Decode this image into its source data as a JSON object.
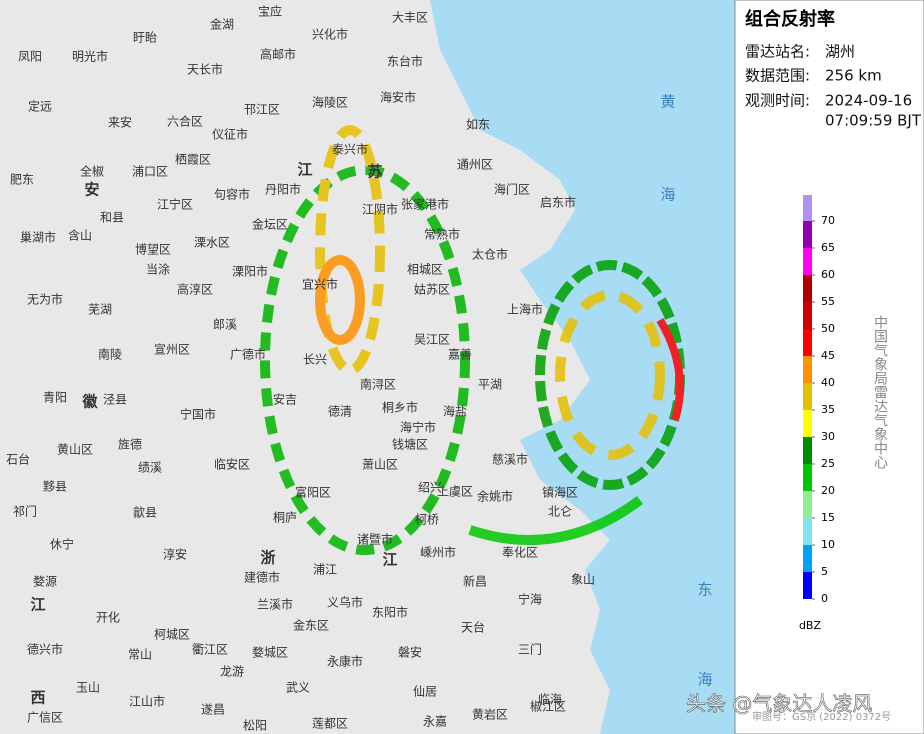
{
  "panel": {
    "title": "组合反射率",
    "station_label": "雷达站名:",
    "station": "湖州",
    "range_label": "数据范围:",
    "range": "256 km",
    "time_label": "观测时间:",
    "date": "2024-09-16",
    "time": "07:09:59 BJT"
  },
  "legend": {
    "ticks": [
      0,
      5,
      10,
      15,
      20,
      25,
      30,
      35,
      40,
      45,
      50,
      55,
      60,
      65,
      70
    ],
    "colors": [
      "#0000f6",
      "#00a0f6",
      "#80e4f0",
      "#90ee90",
      "#00c800",
      "#008c00",
      "#ffff00",
      "#e6c000",
      "#ff9000",
      "#ff0000",
      "#d00000",
      "#b00000",
      "#ff00f0",
      "#9000b0",
      "#b090f0"
    ],
    "unit": "dBZ",
    "agency": "中国气象局雷达气象中心"
  },
  "map": {
    "place_names": [
      "大丰区",
      "宝应",
      "金湖",
      "兴化市",
      "盱眙",
      "凤阳",
      "明光市",
      "高邮市",
      "东台市",
      "天长市",
      "定远",
      "邗江区",
      "海陵区",
      "海安市",
      "如东",
      "来安",
      "六合区",
      "仪征市",
      "泰兴市",
      "通州区",
      "肥东",
      "全椒",
      "浦口区",
      "栖霞区",
      "丹阳市",
      "张家港市",
      "海门区",
      "启东市",
      "巢湖市",
      "含山",
      "和县",
      "江宁区",
      "句容市",
      "金坛区",
      "江阴市",
      "常熟市",
      "太仓市",
      "当涂",
      "溧水区",
      "博望区",
      "溧阳市",
      "宜兴市",
      "相城区",
      "无为市",
      "高淳区",
      "姑苏区",
      "上海市",
      "芜湖",
      "郎溪",
      "广德市",
      "吴江区",
      "嘉善",
      "南陵",
      "宣州区",
      "长兴",
      "南浔区",
      "平湖",
      "青阳",
      "泾县",
      "宁国市",
      "安吉",
      "德清",
      "桐乡市",
      "海盐",
      "海宁市",
      "钱塘区",
      "黄山区",
      "旌德",
      "绩溪",
      "临安区",
      "萧山区",
      "慈溪市",
      "镇海区",
      "石台",
      "黟县",
      "歙县",
      "富阳区",
      "绍兴",
      "上虞区",
      "余姚市",
      "祁门",
      "桐庐",
      "诸暨市",
      "柯桥",
      "嵊州市",
      "奉化区",
      "北仑",
      "休宁",
      "淳安",
      "建德市",
      "浦江",
      "新昌",
      "象山",
      "婺源",
      "兰溪市",
      "义乌市",
      "东阳市",
      "宁海",
      "开化",
      "柯城区",
      "金东区",
      "天台",
      "常山",
      "衢江区",
      "龙游",
      "婺城区",
      "永康市",
      "磐安",
      "三门",
      "德兴市",
      "武义",
      "仙居",
      "临海",
      "玉山",
      "江山市",
      "遂昌",
      "松阳",
      "莲都区",
      "永嘉",
      "黄岩区",
      "椒江区",
      "广信区"
    ],
    "region_names": [
      "江",
      "苏",
      "安",
      "徽",
      "浙",
      "江",
      "江",
      "西",
      "黄",
      "海",
      "东",
      "海"
    ]
  },
  "footer": {
    "watermark": "头条 @气象达人凌风",
    "map_number": "审图号：GS京 (2022) 0372号"
  }
}
